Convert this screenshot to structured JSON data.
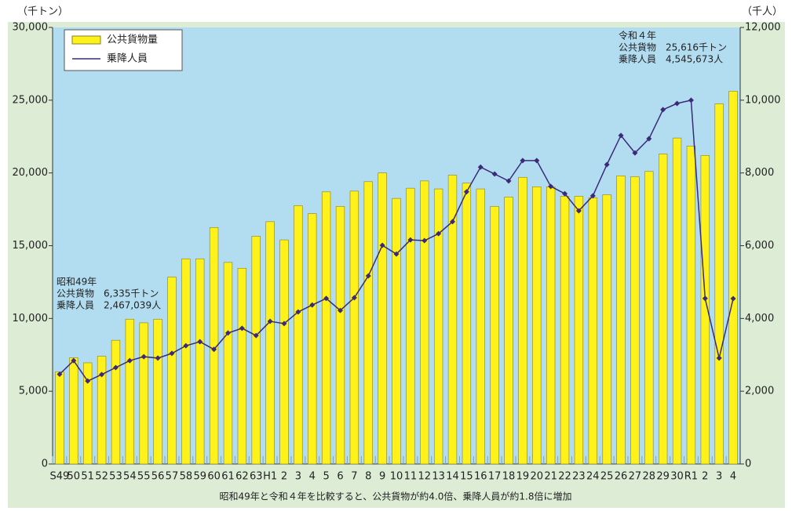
{
  "chart_data": {
    "type": "bar_line",
    "y_label": "（千トン）",
    "y2_label": "（千人）",
    "categories": [
      "S49",
      "50",
      "51",
      "52",
      "53",
      "54",
      "55",
      "56",
      "57",
      "58",
      "59",
      "60",
      "61",
      "62",
      "63",
      "H1",
      "2",
      "3",
      "4",
      "5",
      "6",
      "7",
      "8",
      "9",
      "10",
      "11",
      "12",
      "13",
      "14",
      "15",
      "16",
      "17",
      "18",
      "19",
      "20",
      "21",
      "22",
      "23",
      "24",
      "25",
      "26",
      "27",
      "28",
      "29",
      "30",
      "R1",
      "2",
      "3",
      "4"
    ],
    "series": [
      {
        "name": "公共貨物量",
        "color": "#fff21a",
        "kind": "bar",
        "axis": "y",
        "values": [
          6335,
          7300,
          6950,
          7400,
          8500,
          9950,
          9700,
          9950,
          12850,
          14100,
          14100,
          16250,
          13850,
          13450,
          15650,
          16650,
          15400,
          17750,
          17200,
          18700,
          17700,
          18750,
          19400,
          20000,
          18250,
          18950,
          19450,
          18900,
          19850,
          19300,
          18900,
          17700,
          18350,
          19700,
          19050,
          19050,
          18400,
          18400,
          18300,
          18500,
          19800,
          19750,
          20100,
          21300,
          22400,
          21850,
          21200,
          24750,
          25616
        ]
      },
      {
        "name": "乗降人員",
        "color": "#3b2a78",
        "kind": "line",
        "axis": "y2",
        "values": [
          2467,
          2840,
          2280,
          2460,
          2650,
          2840,
          2950,
          2910,
          3040,
          3250,
          3360,
          3150,
          3600,
          3730,
          3530,
          3920,
          3860,
          4180,
          4370,
          4550,
          4220,
          4570,
          5170,
          6010,
          5770,
          6160,
          6140,
          6330,
          6660,
          7480,
          8160,
          7970,
          7780,
          8340,
          8340,
          7630,
          7430,
          6960,
          7370,
          8230,
          9030,
          8550,
          8940,
          9740,
          9910,
          10000,
          4550,
          2910,
          4546
        ]
      }
    ],
    "ylim": [
      0,
      30000
    ],
    "yticks": [
      0,
      {
        "value": 5000,
        "label": "5,000"
      },
      {
        "value": 10000,
        "label": "10,000"
      },
      {
        "value": 15000,
        "label": "15,000"
      },
      {
        "value": 20000,
        "label": "20,000"
      },
      {
        "value": 25000,
        "label": "25,000"
      },
      {
        "value": 30000,
        "label": "30,000"
      }
    ],
    "y2lim": [
      0,
      12000
    ],
    "y2ticks": [
      0,
      {
        "value": 2000,
        "label": "2,000"
      },
      {
        "value": 4000,
        "label": "4,000"
      },
      {
        "value": 6000,
        "label": "6,000"
      },
      {
        "value": 8000,
        "label": "8,000"
      },
      {
        "value": 10000,
        "label": "10,000"
      },
      {
        "value": 12000,
        "label": "12,000"
      }
    ],
    "annotations": [
      {
        "lines": [
          "令和４年",
          "公共貨物　25,616千トン",
          "乗降人員　4,545,673人"
        ],
        "color": "#e03a2a"
      },
      {
        "lines": [
          "昭和49年",
          "公共貨物　6,335千トン",
          "乗降人員　2,467,039人"
        ],
        "color": "#222222"
      }
    ],
    "footnote": "昭和49年と令和４年を比較すると、公共貨物が約4.0倍、乗降人員が約1.8倍に増加"
  }
}
